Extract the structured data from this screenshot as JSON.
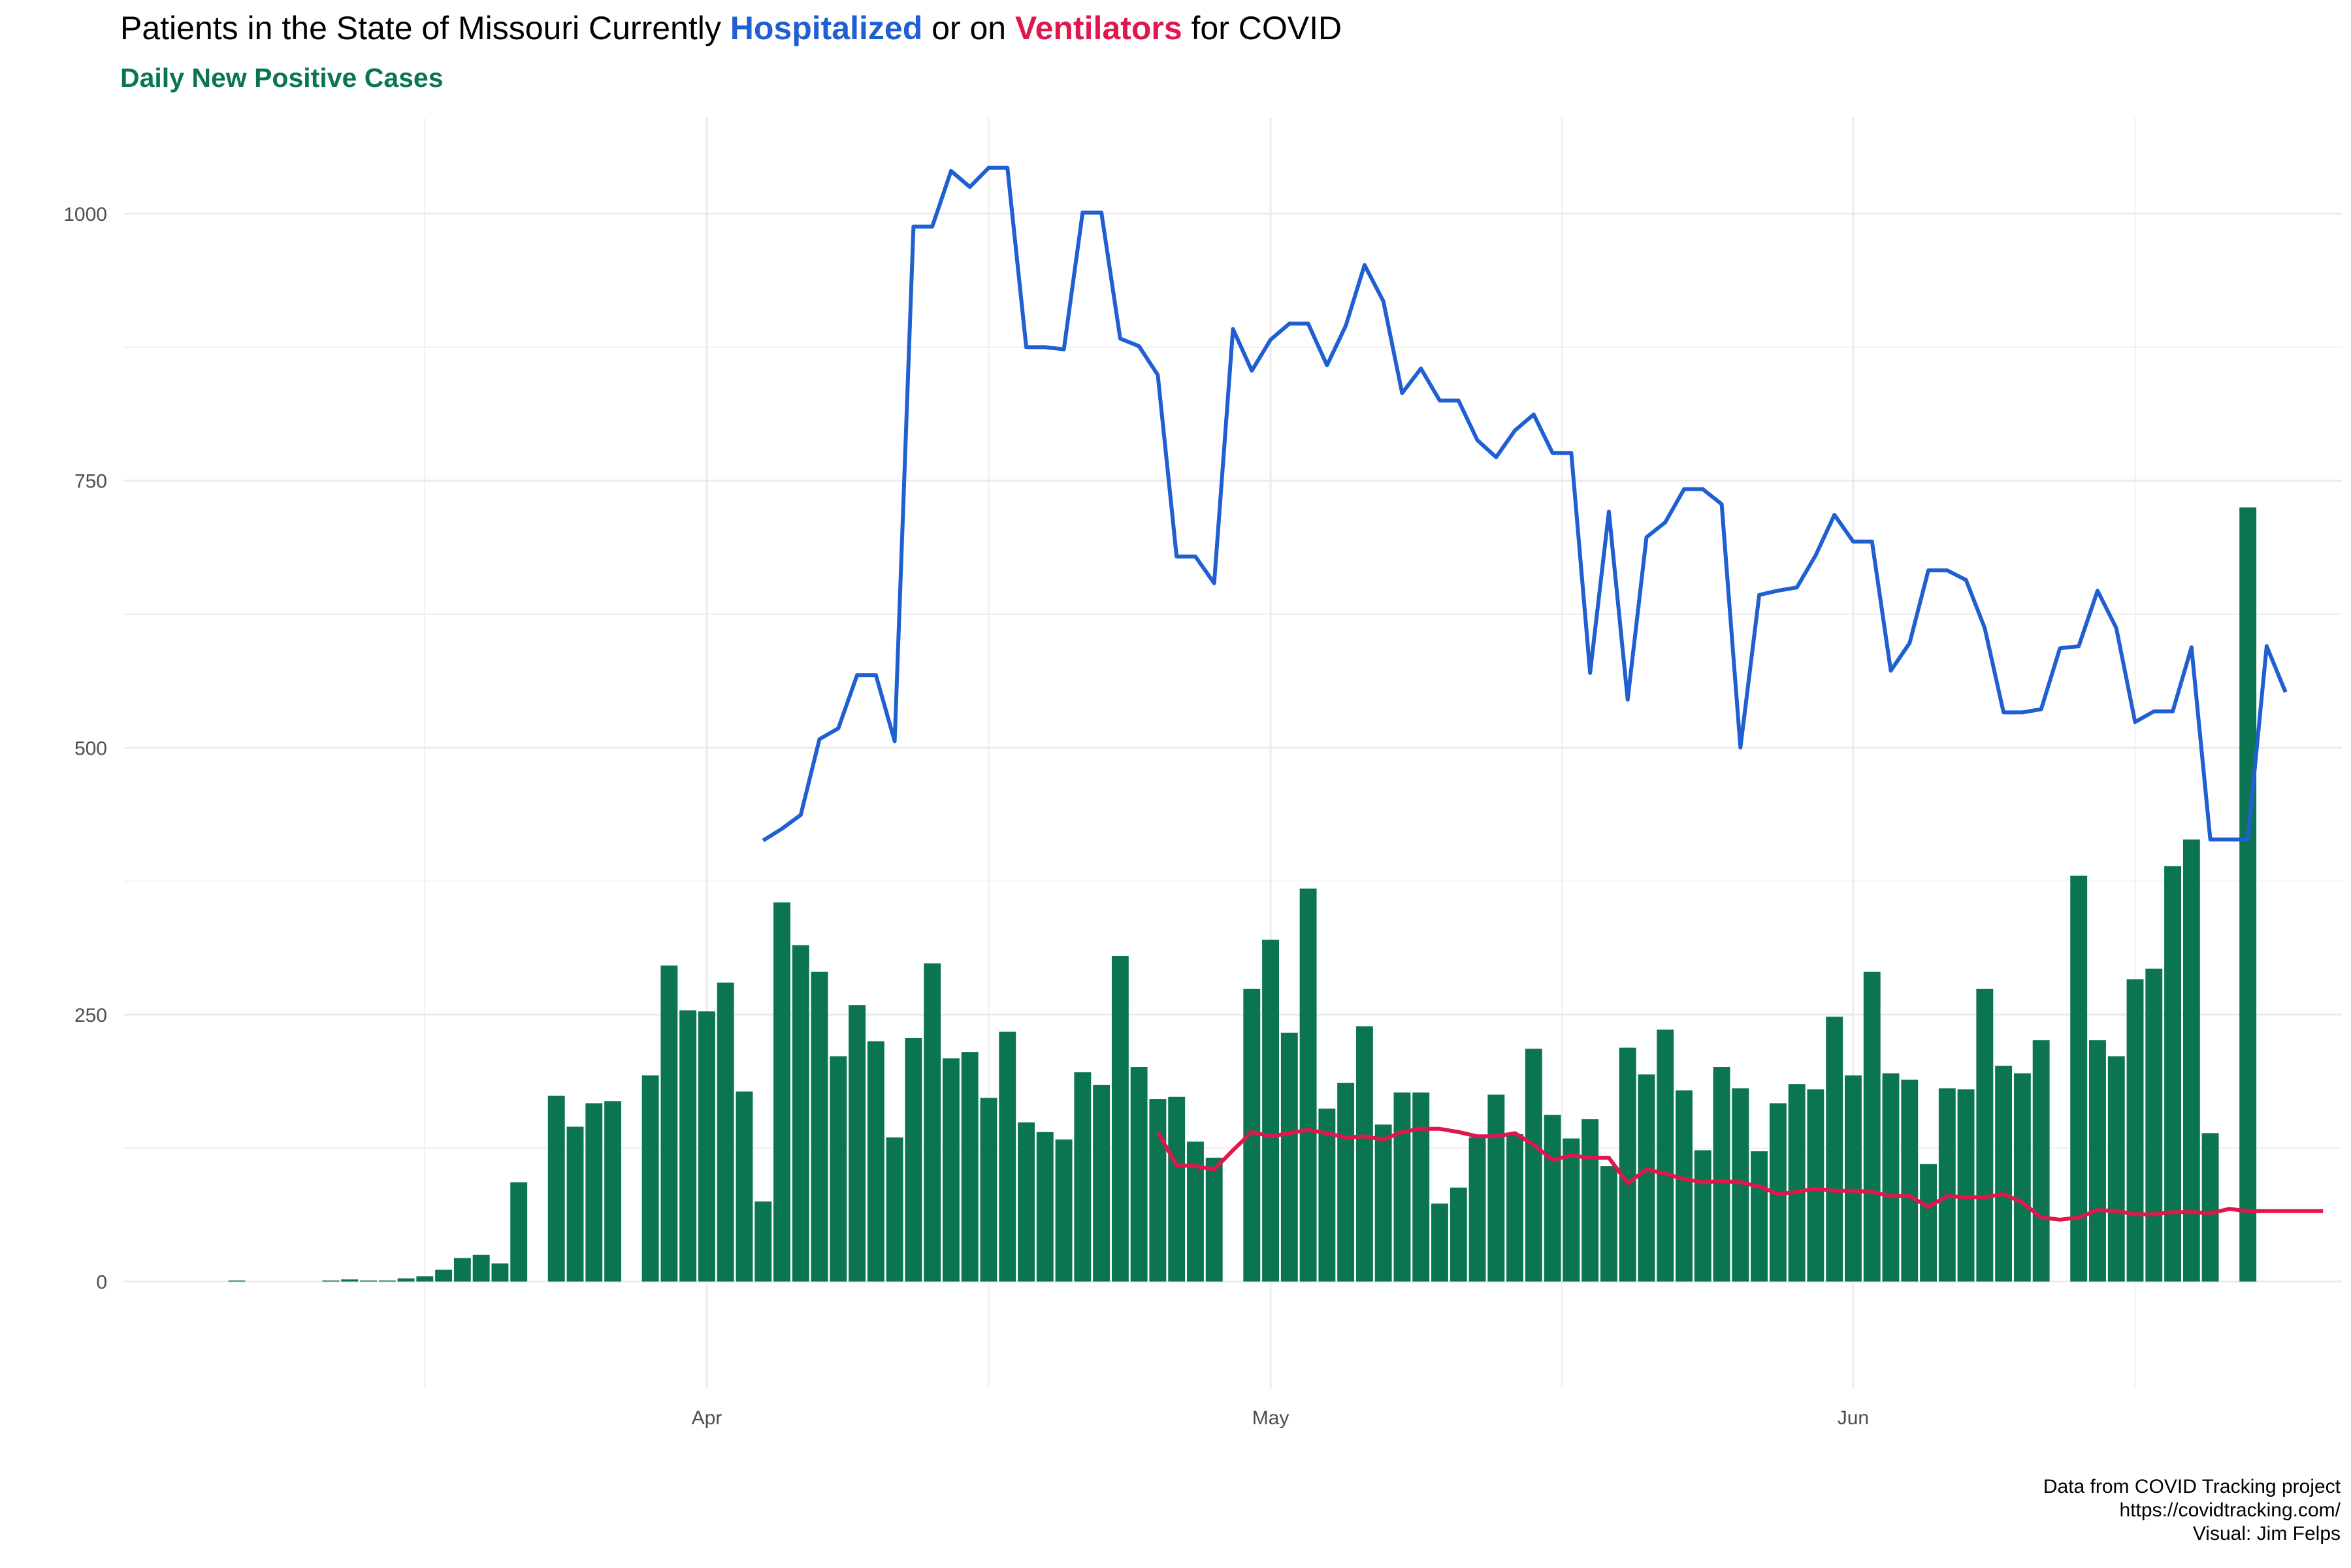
{
  "title": {
    "segments": [
      {
        "text": "Patients in the State of Missouri Currently ",
        "color": "#000000",
        "bold": false
      },
      {
        "text": "Hospitalized",
        "color": "#1f5fd1",
        "bold": true
      },
      {
        "text": " or on ",
        "color": "#000000",
        "bold": false
      },
      {
        "text": "Ventilators",
        "color": "#e0164e",
        "bold": true
      },
      {
        "text": " for COVID",
        "color": "#000000",
        "bold": false
      }
    ]
  },
  "subtitle": {
    "text": "Daily New Positive Cases",
    "color": "#0b7552"
  },
  "caption": {
    "lines": [
      "Data from COVID Tracking project",
      "https://covidtracking.com/",
      "Visual: Jim Felps"
    ]
  },
  "colors": {
    "cases_bar": "#0b7552",
    "hospitalized_line": "#1f5fd1",
    "ventilator_line": "#e0164e",
    "grid": "#ebebeb"
  },
  "chart_data": {
    "type": "bar",
    "x_axis": {
      "type": "date",
      "min": "2020-03-01",
      "max": "2020-06-27",
      "tick_labels": [
        {
          "date": "2020-04-01",
          "label": "Apr"
        },
        {
          "date": "2020-05-01",
          "label": "May"
        },
        {
          "date": "2020-06-01",
          "label": "Jun"
        }
      ]
    },
    "y_axis": {
      "min": -100,
      "max": 1090,
      "ticks": [
        0,
        250,
        500,
        750,
        1000
      ]
    },
    "grid": true,
    "series": [
      {
        "kind": "bar",
        "name": "Daily New Positive Cases",
        "start_date": "2020-03-07",
        "values": [
          1,
          0,
          0,
          0,
          0,
          1,
          2,
          1,
          1,
          3,
          5,
          11,
          22,
          25,
          17,
          93,
          0,
          174,
          145,
          167,
          169,
          0,
          193,
          296,
          254,
          253,
          280,
          178,
          75,
          355,
          315,
          290,
          211,
          259,
          225,
          135,
          228,
          298,
          209,
          215,
          172,
          234,
          149,
          140,
          133,
          196,
          184,
          305,
          201,
          171,
          173,
          131,
          116,
          0,
          274,
          320,
          233,
          368,
          162,
          186,
          239,
          147,
          177,
          177,
          73,
          88,
          135,
          175,
          138,
          218,
          156,
          134,
          152,
          108,
          219,
          194,
          236,
          179,
          123,
          201,
          181,
          122,
          167,
          185,
          180,
          248,
          193,
          290,
          195,
          189,
          110,
          181,
          180,
          274,
          202,
          195,
          226,
          0,
          380,
          226,
          211,
          283,
          293,
          389,
          414,
          139,
          0,
          725
        ]
      },
      {
        "kind": "line",
        "name": "Hospitalized",
        "start_date": "2020-04-04",
        "values": [
          413,
          424,
          437,
          508,
          518,
          568,
          568,
          506,
          988,
          988,
          1040,
          1025,
          1043,
          1043,
          875,
          875,
          873,
          1001,
          1001,
          883,
          876,
          849,
          679,
          679,
          654,
          892,
          853,
          882,
          897,
          897,
          858,
          895,
          952,
          918,
          832,
          855,
          825,
          825,
          788,
          772,
          797,
          812,
          776,
          776,
          570,
          721,
          545,
          697,
          711,
          742,
          742,
          728,
          500,
          643,
          647,
          650,
          680,
          718,
          693,
          693,
          572,
          598,
          666,
          666,
          657,
          612,
          533,
          533,
          536,
          593,
          595,
          647,
          612,
          524,
          534,
          534,
          594,
          414,
          414,
          414,
          595,
          552
        ]
      },
      {
        "kind": "line",
        "name": "Ventilators",
        "start_date": "2020-04-25",
        "values": [
          140,
          109,
          108,
          105,
          123,
          140,
          136,
          139,
          142,
          139,
          135,
          136,
          133,
          140,
          143,
          143,
          140,
          136,
          136,
          139,
          128,
          114,
          118,
          116,
          116,
          92,
          105,
          101,
          96,
          93,
          94,
          93,
          89,
          82,
          84,
          87,
          85,
          85,
          84,
          80,
          80,
          70,
          80,
          79,
          79,
          82,
          74,
          60,
          58,
          60,
          67,
          66,
          63,
          63,
          65,
          65,
          64,
          68,
          66,
          66,
          66,
          66,
          66
        ]
      }
    ]
  }
}
